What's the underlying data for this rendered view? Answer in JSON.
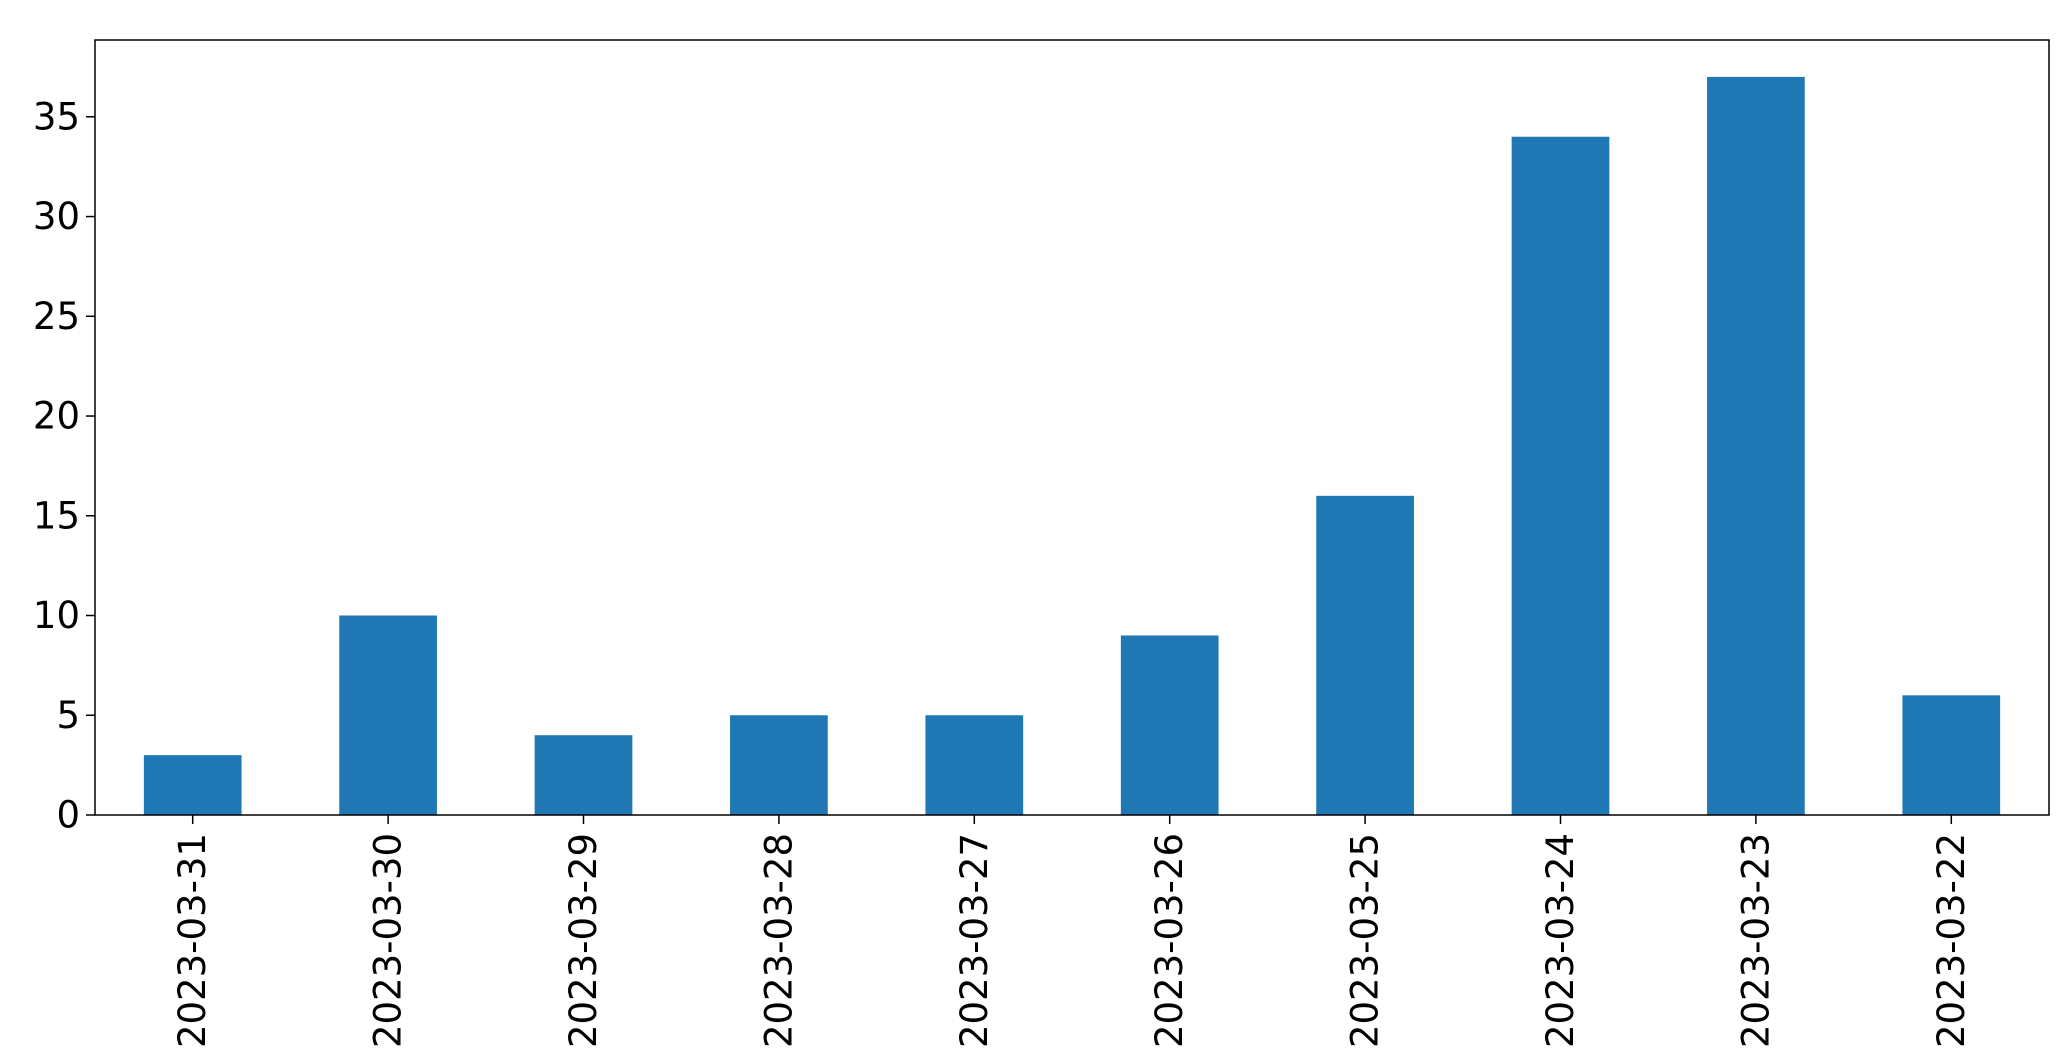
{
  "chart_data": {
    "type": "bar",
    "title": "",
    "xlabel": "",
    "ylabel": "",
    "categories": [
      "2023-03-31",
      "2023-03-30",
      "2023-03-29",
      "2023-03-28",
      "2023-03-27",
      "2023-03-26",
      "2023-03-25",
      "2023-03-24",
      "2023-03-23",
      "2023-03-22"
    ],
    "values": [
      3,
      10,
      4,
      5,
      5,
      9,
      16,
      34,
      37,
      6
    ],
    "ylim": [
      0,
      38.85
    ],
    "yticks": [
      0,
      5,
      10,
      15,
      20,
      25,
      30,
      35
    ],
    "grid": false,
    "legend": "none",
    "bar_color": "#1f77b4"
  }
}
